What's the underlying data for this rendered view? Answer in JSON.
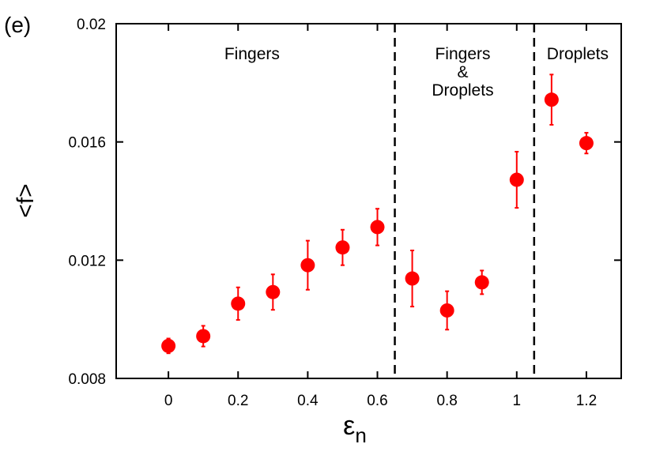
{
  "chart_data": {
    "type": "scatter",
    "panel_label": "(e)",
    "xlabel": "ε",
    "xlabel_subscript": "n",
    "ylabel": "<f>",
    "xlim": [
      -0.15,
      1.3
    ],
    "ylim": [
      0.008,
      0.02
    ],
    "x_ticks": [
      0,
      0.2,
      0.4,
      0.6,
      0.8,
      1,
      1.2
    ],
    "x_tick_labels": [
      "0",
      "0.2",
      "0.4",
      "0.6",
      "0.8",
      "1",
      "1.2"
    ],
    "y_ticks": [
      0.008,
      0.012,
      0.016,
      0.02
    ],
    "y_tick_labels": [
      "0.008",
      "0.012",
      "0.016",
      "0.02"
    ],
    "grid": false,
    "marker_color": "#ff0000",
    "errorbar_color": "#ff0000",
    "regions": [
      {
        "lines": [
          "Fingers"
        ],
        "x_center": 0.24
      },
      {
        "lines": [
          "Fingers",
          "&",
          "Droplets"
        ],
        "x_center": 0.845
      },
      {
        "lines": [
          "Droplets"
        ],
        "x_center": 1.175
      }
    ],
    "dividers": [
      0.65,
      1.05
    ],
    "points": [
      {
        "x": 0.0,
        "y": 0.0091,
        "err": 0.00025
      },
      {
        "x": 0.1,
        "y": 0.00943,
        "err": 0.00035
      },
      {
        "x": 0.2,
        "y": 0.01053,
        "err": 0.00055
      },
      {
        "x": 0.3,
        "y": 0.01092,
        "err": 0.0006
      },
      {
        "x": 0.4,
        "y": 0.01183,
        "err": 0.00083
      },
      {
        "x": 0.5,
        "y": 0.01243,
        "err": 0.0006
      },
      {
        "x": 0.6,
        "y": 0.01312,
        "err": 0.00062
      },
      {
        "x": 0.7,
        "y": 0.01138,
        "err": 0.00095
      },
      {
        "x": 0.8,
        "y": 0.0103,
        "err": 0.00065
      },
      {
        "x": 0.9,
        "y": 0.01125,
        "err": 0.0004
      },
      {
        "x": 1.0,
        "y": 0.01472,
        "err": 0.00095
      },
      {
        "x": 1.1,
        "y": 0.01743,
        "err": 0.00085
      },
      {
        "x": 1.2,
        "y": 0.01596,
        "err": 0.00035
      }
    ]
  }
}
